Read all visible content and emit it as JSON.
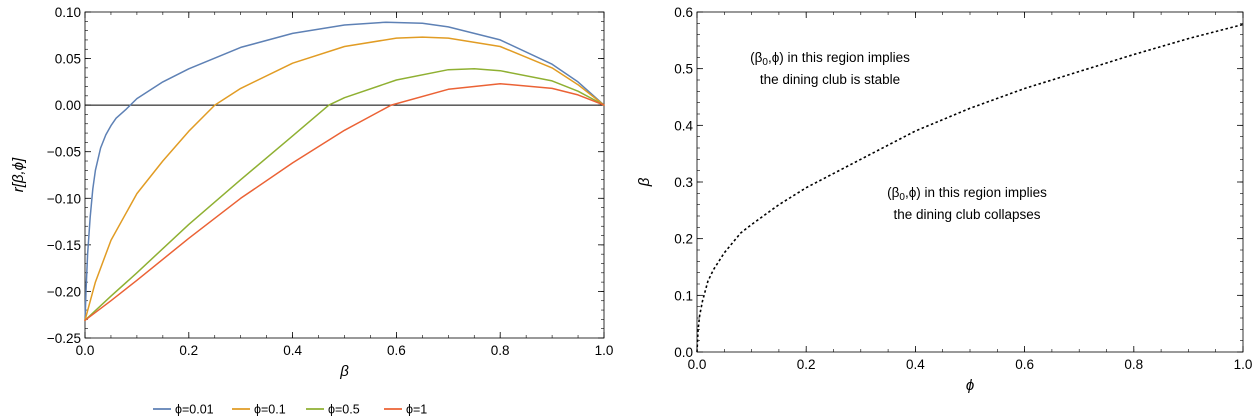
{
  "chart_data": [
    {
      "type": "line",
      "xlabel": "β",
      "ylabel": "r[β,ϕ]",
      "xlim": [
        0,
        1
      ],
      "ylim": [
        -0.25,
        0.1
      ],
      "x_ticks": [
        "0.0",
        "0.2",
        "0.4",
        "0.6",
        "0.8",
        "1.0"
      ],
      "y_ticks": [
        "0.10",
        "0.05",
        "0.00",
        "−0.05",
        "−0.10",
        "−0.15",
        "−0.20",
        "−0.25"
      ],
      "x_tick_values": [
        0,
        0.2,
        0.4,
        0.6,
        0.8,
        1.0
      ],
      "y_tick_values": [
        0.1,
        0.05,
        0,
        -0.05,
        -0.1,
        -0.15,
        -0.2,
        -0.25
      ],
      "reference_line_y": 0,
      "legend_position": "bottom",
      "series": [
        {
          "name": "ϕ=0.01",
          "color": "#5E81B5",
          "x": [
            0,
            0.002,
            0.005,
            0.01,
            0.015,
            0.02,
            0.03,
            0.04,
            0.05,
            0.06,
            0.08,
            0.1,
            0.15,
            0.2,
            0.3,
            0.4,
            0.5,
            0.58,
            0.65,
            0.7,
            0.8,
            0.9,
            0.95,
            1.0
          ],
          "y": [
            -0.231,
            -0.2,
            -0.16,
            -0.12,
            -0.09,
            -0.07,
            -0.046,
            -0.032,
            -0.022,
            -0.014,
            -0.004,
            0.007,
            0.025,
            0.039,
            0.062,
            0.077,
            0.086,
            0.089,
            0.088,
            0.084,
            0.07,
            0.044,
            0.025,
            0.0
          ]
        },
        {
          "name": "ϕ=0.1",
          "color": "#E19C24",
          "x": [
            0,
            0.02,
            0.05,
            0.1,
            0.15,
            0.2,
            0.25,
            0.3,
            0.4,
            0.5,
            0.6,
            0.65,
            0.7,
            0.8,
            0.9,
            0.95,
            1.0
          ],
          "y": [
            -0.231,
            -0.19,
            -0.145,
            -0.095,
            -0.06,
            -0.028,
            0.0,
            0.018,
            0.045,
            0.063,
            0.072,
            0.073,
            0.072,
            0.063,
            0.04,
            0.022,
            0.0
          ]
        },
        {
          "name": "ϕ=0.5",
          "color": "#8FB032",
          "x": [
            0,
            0.05,
            0.1,
            0.2,
            0.3,
            0.4,
            0.47,
            0.5,
            0.6,
            0.7,
            0.75,
            0.8,
            0.9,
            0.95,
            1.0
          ],
          "y": [
            -0.231,
            -0.205,
            -0.18,
            -0.128,
            -0.08,
            -0.033,
            0.0,
            0.008,
            0.027,
            0.038,
            0.039,
            0.037,
            0.026,
            0.015,
            0.0
          ]
        },
        {
          "name": "ϕ=1",
          "color": "#EB6235",
          "x": [
            0,
            0.05,
            0.1,
            0.2,
            0.3,
            0.4,
            0.5,
            0.59,
            0.7,
            0.8,
            0.9,
            0.95,
            1.0
          ],
          "y": [
            -0.231,
            -0.21,
            -0.188,
            -0.143,
            -0.1,
            -0.062,
            -0.027,
            0.0,
            0.017,
            0.023,
            0.018,
            0.011,
            0.0
          ]
        }
      ]
    },
    {
      "type": "line",
      "xlabel": "ϕ",
      "ylabel": "β",
      "xlim": [
        0,
        1
      ],
      "ylim": [
        0,
        0.6
      ],
      "x_ticks": [
        "0.0",
        "0.2",
        "0.4",
        "0.6",
        "0.8",
        "1.0"
      ],
      "y_ticks": [
        "0.6",
        "0.5",
        "0.4",
        "0.3",
        "0.2",
        "0.1",
        "0.0"
      ],
      "x_tick_values": [
        0,
        0.2,
        0.4,
        0.6,
        0.8,
        1.0
      ],
      "y_tick_values": [
        0.6,
        0.5,
        0.4,
        0.3,
        0.2,
        0.1,
        0.0
      ],
      "series": [
        {
          "style": "dotted",
          "color": "#000000",
          "x": [
            0.0,
            0.002,
            0.005,
            0.01,
            0.02,
            0.03,
            0.05,
            0.08,
            0.1,
            0.15,
            0.2,
            0.3,
            0.4,
            0.5,
            0.6,
            0.7,
            0.8,
            0.9,
            1.0
          ],
          "y": [
            0.0,
            0.04,
            0.065,
            0.09,
            0.125,
            0.145,
            0.175,
            0.21,
            0.225,
            0.26,
            0.29,
            0.34,
            0.39,
            0.43,
            0.465,
            0.495,
            0.525,
            0.553,
            0.578
          ]
        }
      ],
      "annotations": [
        {
          "line1_pre": "(β",
          "line1_sub": "0",
          "line1_post": ",ϕ) in this region implies",
          "line2": "the dining club is stable"
        },
        {
          "line1_pre": "(β",
          "line1_sub": "0",
          "line1_post": ",ϕ) in this region implies",
          "line2": "the dining club collapses"
        }
      ]
    }
  ]
}
